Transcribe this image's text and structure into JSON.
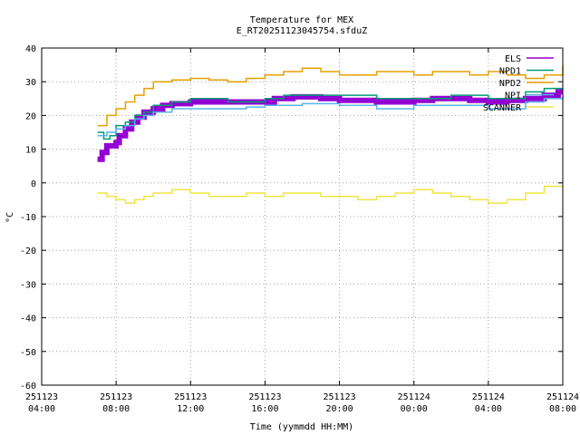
{
  "chart_data": {
    "type": "line",
    "title": "Temperature for MEX",
    "subtitle": "E_RT20251123045754.sfduZ",
    "xlabel": "Time (yymmdd HH:MM)",
    "ylabel": "°C",
    "ylim": [
      -60,
      40
    ],
    "yticks": [
      -60,
      -50,
      -40,
      -30,
      -20,
      -10,
      0,
      10,
      20,
      30,
      40
    ],
    "xlim": [
      "2025-11-23 04:00",
      "2025-11-24 08:00"
    ],
    "xticks": [
      {
        "x": "2025-11-23 04:00",
        "date": "251123",
        "time": "04:00"
      },
      {
        "x": "2025-11-23 08:00",
        "date": "251123",
        "time": "08:00"
      },
      {
        "x": "2025-11-23 12:00",
        "date": "251123",
        "time": "12:00"
      },
      {
        "x": "2025-11-23 16:00",
        "date": "251123",
        "time": "16:00"
      },
      {
        "x": "2025-11-23 20:00",
        "date": "251123",
        "time": "20:00"
      },
      {
        "x": "2025-11-24 00:00",
        "date": "251124",
        "time": "00:00"
      },
      {
        "x": "2025-11-24 04:00",
        "date": "251124",
        "time": "04:00"
      },
      {
        "x": "2025-11-24 08:00",
        "date": "251124",
        "time": "08:00"
      }
    ],
    "grid": true,
    "legend_position": "top-right",
    "series": [
      {
        "name": "ELS",
        "color": "#9400d3",
        "width": 6,
        "points": [
          [
            "2025-11-23 07:00",
            7
          ],
          [
            "2025-11-23 07:15",
            9
          ],
          [
            "2025-11-23 07:30",
            11
          ],
          [
            "2025-11-23 08:00",
            12
          ],
          [
            "2025-11-23 08:10",
            14
          ],
          [
            "2025-11-23 08:30",
            16
          ],
          [
            "2025-11-23 08:50",
            18
          ],
          [
            "2025-11-23 09:10",
            19.5
          ],
          [
            "2025-11-23 09:30",
            21
          ],
          [
            "2025-11-23 10:00",
            22
          ],
          [
            "2025-11-23 10:30",
            23
          ],
          [
            "2025-11-23 11:00",
            23.5
          ],
          [
            "2025-11-23 12:00",
            24
          ],
          [
            "2025-11-23 14:00",
            24
          ],
          [
            "2025-11-23 16:00",
            24
          ],
          [
            "2025-11-23 16:30",
            25
          ],
          [
            "2025-11-23 17:30",
            25.5
          ],
          [
            "2025-11-23 19:00",
            25
          ],
          [
            "2025-11-23 20:00",
            24.5
          ],
          [
            "2025-11-23 22:00",
            24
          ],
          [
            "2025-11-24 00:00",
            24.5
          ],
          [
            "2025-11-24 01:00",
            25
          ],
          [
            "2025-11-24 02:00",
            25
          ],
          [
            "2025-11-24 03:00",
            24.5
          ],
          [
            "2025-11-24 04:00",
            24
          ],
          [
            "2025-11-24 05:00",
            24.5
          ],
          [
            "2025-11-24 06:00",
            25
          ],
          [
            "2025-11-24 07:00",
            26
          ],
          [
            "2025-11-24 07:45",
            27
          ],
          [
            "2025-11-24 08:00",
            27
          ]
        ]
      },
      {
        "name": "NPD1",
        "color": "#009e73",
        "width": 1.5,
        "points": [
          [
            "2025-11-23 07:00",
            15
          ],
          [
            "2025-11-23 07:20",
            13
          ],
          [
            "2025-11-23 07:40",
            14
          ],
          [
            "2025-11-23 08:00",
            17
          ],
          [
            "2025-11-23 08:30",
            18
          ],
          [
            "2025-11-23 09:00",
            20
          ],
          [
            "2025-11-23 09:30",
            21
          ],
          [
            "2025-11-23 10:00",
            23
          ],
          [
            "2025-11-23 11:00",
            24
          ],
          [
            "2025-11-23 12:00",
            25
          ],
          [
            "2025-11-23 13:00",
            25
          ],
          [
            "2025-11-23 14:00",
            24
          ],
          [
            "2025-11-23 15:00",
            24
          ],
          [
            "2025-11-23 16:00",
            25
          ],
          [
            "2025-11-23 17:00",
            26
          ],
          [
            "2025-11-23 18:00",
            26
          ],
          [
            "2025-11-23 20:00",
            26
          ],
          [
            "2025-11-23 22:00",
            25
          ],
          [
            "2025-11-24 00:00",
            25
          ],
          [
            "2025-11-24 02:00",
            26
          ],
          [
            "2025-11-24 04:00",
            25
          ],
          [
            "2025-11-24 06:00",
            27
          ],
          [
            "2025-11-24 07:00",
            28
          ],
          [
            "2025-11-24 08:00",
            28
          ]
        ]
      },
      {
        "name": "NPD2",
        "color": "#e69f00",
        "width": 1.5,
        "points": [
          [
            "2025-11-23 07:00",
            17
          ],
          [
            "2025-11-23 07:30",
            20
          ],
          [
            "2025-11-23 08:00",
            22
          ],
          [
            "2025-11-23 08:30",
            24
          ],
          [
            "2025-11-23 09:00",
            26
          ],
          [
            "2025-11-23 09:30",
            28
          ],
          [
            "2025-11-23 10:00",
            30
          ],
          [
            "2025-11-23 11:00",
            30.5
          ],
          [
            "2025-11-23 12:00",
            31
          ],
          [
            "2025-11-23 13:00",
            30.5
          ],
          [
            "2025-11-23 14:00",
            30
          ],
          [
            "2025-11-23 15:00",
            31
          ],
          [
            "2025-11-23 16:00",
            32
          ],
          [
            "2025-11-23 17:00",
            33
          ],
          [
            "2025-11-23 18:00",
            34
          ],
          [
            "2025-11-23 19:00",
            33
          ],
          [
            "2025-11-23 20:00",
            32
          ],
          [
            "2025-11-23 21:00",
            32
          ],
          [
            "2025-11-23 22:00",
            33
          ],
          [
            "2025-11-24 00:00",
            32
          ],
          [
            "2025-11-24 01:00",
            33
          ],
          [
            "2025-11-24 02:00",
            33
          ],
          [
            "2025-11-24 03:00",
            32
          ],
          [
            "2025-11-24 04:00",
            33
          ],
          [
            "2025-11-24 05:00",
            32
          ],
          [
            "2025-11-24 06:00",
            31
          ],
          [
            "2025-11-24 07:00",
            32
          ],
          [
            "2025-11-24 08:00",
            35
          ]
        ]
      },
      {
        "name": "NPI",
        "color": "#56b4e9",
        "width": 1.5,
        "points": [
          [
            "2025-11-23 07:00",
            14
          ],
          [
            "2025-11-23 07:30",
            15
          ],
          [
            "2025-11-23 08:00",
            16
          ],
          [
            "2025-11-23 08:30",
            17
          ],
          [
            "2025-11-23 09:00",
            19
          ],
          [
            "2025-11-23 09:30",
            20
          ],
          [
            "2025-11-23 10:00",
            21
          ],
          [
            "2025-11-23 11:00",
            22
          ],
          [
            "2025-11-23 12:00",
            22
          ],
          [
            "2025-11-23 14:00",
            22
          ],
          [
            "2025-11-23 15:00",
            22.5
          ],
          [
            "2025-11-23 16:00",
            23
          ],
          [
            "2025-11-23 18:00",
            23.5
          ],
          [
            "2025-11-23 20:00",
            23
          ],
          [
            "2025-11-23 22:00",
            22
          ],
          [
            "2025-11-24 00:00",
            23
          ],
          [
            "2025-11-24 02:00",
            23
          ],
          [
            "2025-11-24 04:00",
            22
          ],
          [
            "2025-11-24 06:00",
            24
          ],
          [
            "2025-11-24 07:00",
            25
          ],
          [
            "2025-11-24 08:00",
            26
          ]
        ]
      },
      {
        "name": "SCANNER",
        "color": "#f0e442",
        "width": 1.5,
        "points": [
          [
            "2025-11-23 07:00",
            -3
          ],
          [
            "2025-11-23 07:30",
            -4
          ],
          [
            "2025-11-23 08:00",
            -5
          ],
          [
            "2025-11-23 08:30",
            -6
          ],
          [
            "2025-11-23 09:00",
            -5
          ],
          [
            "2025-11-23 09:30",
            -4
          ],
          [
            "2025-11-23 10:00",
            -3
          ],
          [
            "2025-11-23 11:00",
            -2
          ],
          [
            "2025-11-23 12:00",
            -3
          ],
          [
            "2025-11-23 13:00",
            -4
          ],
          [
            "2025-11-23 14:00",
            -4
          ],
          [
            "2025-11-23 15:00",
            -3
          ],
          [
            "2025-11-23 16:00",
            -4
          ],
          [
            "2025-11-23 17:00",
            -3
          ],
          [
            "2025-11-23 18:00",
            -3
          ],
          [
            "2025-11-23 19:00",
            -4
          ],
          [
            "2025-11-23 20:00",
            -4
          ],
          [
            "2025-11-23 21:00",
            -5
          ],
          [
            "2025-11-23 22:00",
            -4
          ],
          [
            "2025-11-23 23:00",
            -3
          ],
          [
            "2025-11-24 00:00",
            -2
          ],
          [
            "2025-11-24 01:00",
            -3
          ],
          [
            "2025-11-24 02:00",
            -4
          ],
          [
            "2025-11-24 03:00",
            -5
          ],
          [
            "2025-11-24 04:00",
            -6
          ],
          [
            "2025-11-24 05:00",
            -5
          ],
          [
            "2025-11-24 06:00",
            -3
          ],
          [
            "2025-11-24 07:00",
            -1
          ],
          [
            "2025-11-24 08:00",
            -1
          ]
        ]
      }
    ]
  }
}
